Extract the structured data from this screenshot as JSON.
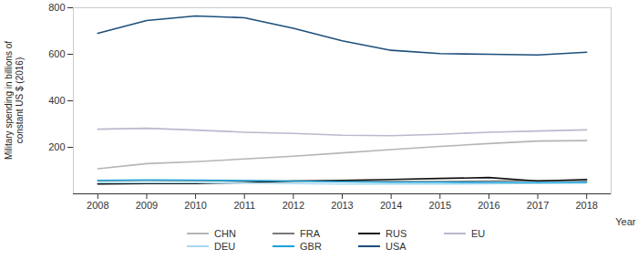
{
  "chart_data": {
    "type": "line",
    "y_label": "Military spending in billions of constant US $ (2016)",
    "x_label": "Year",
    "x": [
      2008,
      2009,
      2010,
      2011,
      2012,
      2013,
      2014,
      2015,
      2016,
      2017,
      2018
    ],
    "xlim": [
      2007.5,
      2018.5
    ],
    "xticks": [
      2008,
      2009,
      2010,
      2011,
      2012,
      2013,
      2014,
      2015,
      2016,
      2017,
      2018
    ],
    "ylim": [
      0,
      800
    ],
    "yticks": [
      200,
      400,
      600,
      800
    ],
    "grid": false,
    "legend": "bottom",
    "series": [
      {
        "name": "CHN",
        "color": "#b5b5b5",
        "values": [
          108,
          130,
          138,
          150,
          162,
          176,
          190,
          204,
          216,
          227,
          229
        ]
      },
      {
        "name": "FRA",
        "color": "#7a7a7a",
        "values": [
          57,
          58,
          57,
          56,
          55,
          54,
          53,
          53,
          55,
          57,
          57
        ]
      },
      {
        "name": "RUS",
        "color": "#111111",
        "values": [
          42,
          44,
          44,
          48,
          55,
          58,
          62,
          66,
          70,
          55,
          62
        ]
      },
      {
        "name": "EU",
        "color": "#b9b9cf",
        "values": [
          278,
          282,
          274,
          265,
          260,
          252,
          250,
          256,
          265,
          270,
          275
        ]
      },
      {
        "name": "DEU",
        "color": "#a8d8ef",
        "values": [
          48,
          48,
          48,
          46,
          44,
          42,
          42,
          42,
          43,
          45,
          46
        ]
      },
      {
        "name": "GBR",
        "color": "#1ba3d9",
        "values": [
          58,
          60,
          59,
          57,
          55,
          52,
          50,
          50,
          49,
          48,
          50
        ]
      },
      {
        "name": "USA",
        "color": "#1d4f7c",
        "values": [
          690,
          745,
          765,
          757,
          712,
          658,
          617,
          603,
          600,
          597,
          609
        ]
      }
    ]
  }
}
